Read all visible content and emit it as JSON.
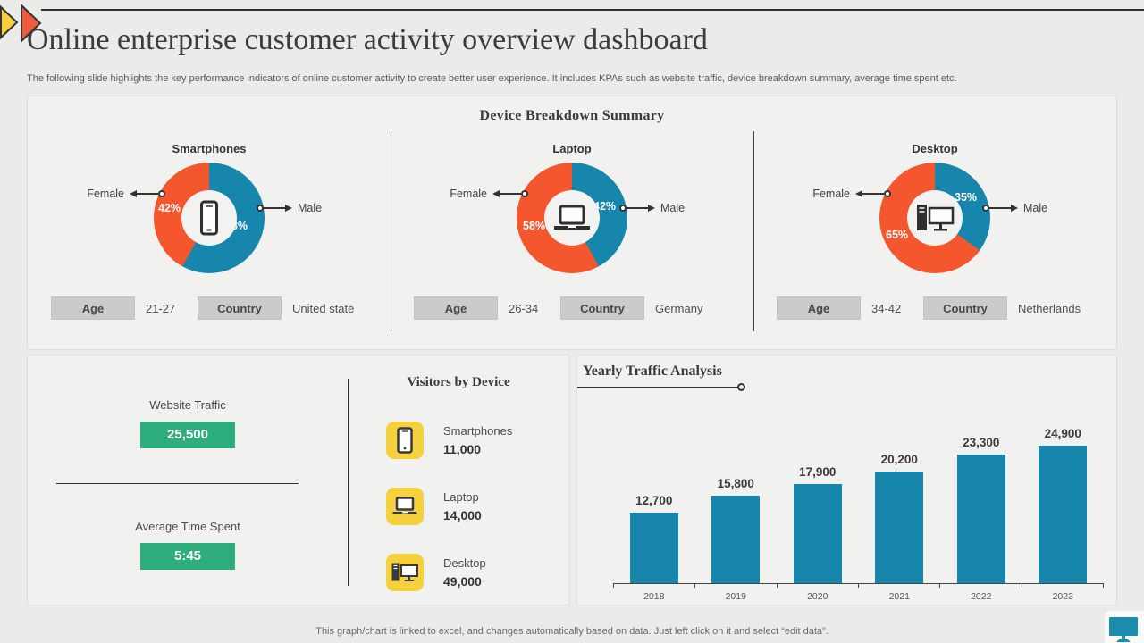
{
  "page": {
    "title": "Online enterprise customer activity overview dashboard",
    "subtitle": "The following slide highlights the key performance indicators of online customer activity to create better user experience. It includes KPAs such as website traffic, device breakdown summary, average time spent etc.",
    "footer_note": "This graph/chart is linked to excel, and changes automatically based on data. Just left click on it and select “edit data”."
  },
  "colors": {
    "male": "#1786AC",
    "female": "#F4562E",
    "bar": "#1786AC",
    "kpi_chip": "#2EAE7D",
    "icon_tile": "#F6D13E",
    "accent_yellow": "#F7CF3D",
    "accent_orange": "#F05B3B"
  },
  "device_breakdown": {
    "title": "Device Breakdown Summary",
    "devices": [
      {
        "name": "Smartphones",
        "female_label": "Female",
        "male_label": "Male",
        "female_pct": "42%",
        "male_pct": "58%",
        "age_label": "Age",
        "age": "21-27",
        "country_label": "Country",
        "country": "United state"
      },
      {
        "name": "Laptop",
        "female_label": "Female",
        "male_label": "Male",
        "female_pct": "58%",
        "male_pct": "42%",
        "age_label": "Age",
        "age": "26-34",
        "country_label": "Country",
        "country": "Germany"
      },
      {
        "name": "Desktop",
        "female_label": "Female",
        "male_label": "Male",
        "female_pct": "65%",
        "male_pct": "35%",
        "age_label": "Age",
        "age": "34-42",
        "country_label": "Country",
        "country": "Netherlands"
      }
    ]
  },
  "kpis": {
    "website_traffic_label": "Website Traffic",
    "website_traffic_value": "25,500",
    "avg_time_label": "Average Time Spent",
    "avg_time_value": "5:45"
  },
  "visitors": {
    "title": "Visitors by Device",
    "items": [
      {
        "label": "Smartphones",
        "value": "11,000",
        "icon": "smartphone-icon"
      },
      {
        "label": "Laptop",
        "value": "14,000",
        "icon": "laptop-icon"
      },
      {
        "label": "Desktop",
        "value": "49,000",
        "icon": "desktop-icon"
      }
    ]
  },
  "yearly": {
    "title": "Yearly Traffic Analysis"
  },
  "chart_data": [
    {
      "type": "pie",
      "title": "Smartphones",
      "labels": [
        "Male",
        "Female"
      ],
      "values": [
        58,
        42
      ],
      "unit": "%",
      "colors": [
        "#1786AC",
        "#F4562E"
      ],
      "annotations": {
        "age": "21-27",
        "country": "United state"
      }
    },
    {
      "type": "pie",
      "title": "Laptop",
      "labels": [
        "Male",
        "Female"
      ],
      "values": [
        42,
        58
      ],
      "unit": "%",
      "colors": [
        "#1786AC",
        "#F4562E"
      ],
      "annotations": {
        "age": "26-34",
        "country": "Germany"
      }
    },
    {
      "type": "pie",
      "title": "Desktop",
      "labels": [
        "Male",
        "Female"
      ],
      "values": [
        35,
        65
      ],
      "unit": "%",
      "colors": [
        "#1786AC",
        "#F4562E"
      ],
      "annotations": {
        "age": "34-42",
        "country": "Netherlands"
      }
    },
    {
      "type": "bar",
      "title": "Yearly Traffic Analysis",
      "categories": [
        "2018",
        "2019",
        "2020",
        "2021",
        "2022",
        "2023"
      ],
      "values": [
        12700,
        15800,
        17900,
        20200,
        23300,
        24900
      ],
      "bar_color": "#1786AC",
      "xlabel": "",
      "ylabel": "",
      "ylim": [
        0,
        26000
      ],
      "grid": false,
      "data_labels": true,
      "legend": false
    },
    {
      "type": "table",
      "title": "Visitors by Device",
      "categories": [
        "Smartphones",
        "Laptop",
        "Desktop"
      ],
      "values": [
        11000,
        14000,
        49000
      ]
    }
  ]
}
